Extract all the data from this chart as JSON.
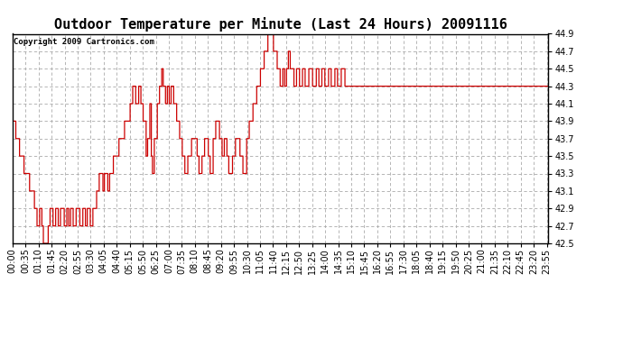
{
  "title": "Outdoor Temperature per Minute (Last 24 Hours) 20091116",
  "copyright_text": "Copyright 2009 Cartronics.com",
  "line_color": "#cc0000",
  "bg_color": "#ffffff",
  "grid_color": "#aaaaaa",
  "ylim": [
    42.5,
    44.9
  ],
  "yticks": [
    42.5,
    42.7,
    42.9,
    43.1,
    43.3,
    43.5,
    43.7,
    43.9,
    44.1,
    44.3,
    44.5,
    44.7,
    44.9
  ],
  "title_fontsize": 11,
  "tick_fontsize": 7,
  "copyright_fontsize": 6.5,
  "xlabel_rotation": 90,
  "x_tick_interval": 35,
  "total_minutes": 1440,
  "x_tick_labels": [
    "00:00",
    "00:35",
    "01:10",
    "01:45",
    "02:20",
    "02:55",
    "03:30",
    "04:05",
    "04:40",
    "05:15",
    "05:50",
    "06:25",
    "07:00",
    "07:35",
    "08:10",
    "08:45",
    "09:20",
    "09:55",
    "10:30",
    "11:05",
    "11:40",
    "12:15",
    "12:50",
    "13:25",
    "14:00",
    "14:35",
    "15:10",
    "15:45",
    "16:20",
    "16:55",
    "17:30",
    "18:05",
    "18:40",
    "19:15",
    "19:50",
    "20:25",
    "21:00",
    "21:35",
    "22:10",
    "22:45",
    "23:20",
    "23:55"
  ],
  "waypoints": [
    [
      0,
      43.9
    ],
    [
      8,
      43.9
    ],
    [
      9,
      43.7
    ],
    [
      18,
      43.7
    ],
    [
      19,
      43.5
    ],
    [
      30,
      43.5
    ],
    [
      31,
      43.3
    ],
    [
      45,
      43.3
    ],
    [
      46,
      43.1
    ],
    [
      58,
      43.1
    ],
    [
      59,
      42.9
    ],
    [
      65,
      42.9
    ],
    [
      66,
      42.7
    ],
    [
      72,
      42.7
    ],
    [
      73,
      42.9
    ],
    [
      78,
      42.9
    ],
    [
      79,
      42.7
    ],
    [
      82,
      42.7
    ],
    [
      83,
      42.5
    ],
    [
      95,
      42.5
    ],
    [
      96,
      42.7
    ],
    [
      100,
      42.7
    ],
    [
      101,
      42.9
    ],
    [
      108,
      42.9
    ],
    [
      109,
      42.7
    ],
    [
      115,
      42.7
    ],
    [
      116,
      42.9
    ],
    [
      122,
      42.9
    ],
    [
      123,
      42.7
    ],
    [
      128,
      42.7
    ],
    [
      129,
      42.9
    ],
    [
      138,
      42.9
    ],
    [
      139,
      42.7
    ],
    [
      145,
      42.7
    ],
    [
      146,
      42.9
    ],
    [
      150,
      42.9
    ],
    [
      151,
      42.7
    ],
    [
      155,
      42.7
    ],
    [
      156,
      42.9
    ],
    [
      162,
      42.9
    ],
    [
      163,
      42.7
    ],
    [
      170,
      42.7
    ],
    [
      171,
      42.9
    ],
    [
      180,
      42.9
    ],
    [
      181,
      42.7
    ],
    [
      188,
      42.7
    ],
    [
      189,
      42.9
    ],
    [
      195,
      42.9
    ],
    [
      196,
      42.7
    ],
    [
      200,
      42.7
    ],
    [
      201,
      42.9
    ],
    [
      208,
      42.9
    ],
    [
      209,
      42.7
    ],
    [
      215,
      42.7
    ],
    [
      216,
      42.9
    ],
    [
      225,
      42.9
    ],
    [
      226,
      43.1
    ],
    [
      232,
      43.1
    ],
    [
      233,
      43.3
    ],
    [
      242,
      43.3
    ],
    [
      243,
      43.1
    ],
    [
      246,
      43.1
    ],
    [
      247,
      43.3
    ],
    [
      255,
      43.3
    ],
    [
      256,
      43.1
    ],
    [
      260,
      43.1
    ],
    [
      261,
      43.3
    ],
    [
      270,
      43.3
    ],
    [
      271,
      43.5
    ],
    [
      285,
      43.5
    ],
    [
      286,
      43.7
    ],
    [
      300,
      43.7
    ],
    [
      301,
      43.9
    ],
    [
      315,
      43.9
    ],
    [
      316,
      44.1
    ],
    [
      322,
      44.1
    ],
    [
      323,
      44.3
    ],
    [
      330,
      44.3
    ],
    [
      331,
      44.1
    ],
    [
      338,
      44.1
    ],
    [
      339,
      44.3
    ],
    [
      344,
      44.3
    ],
    [
      345,
      44.1
    ],
    [
      350,
      44.1
    ],
    [
      351,
      43.9
    ],
    [
      358,
      43.9
    ],
    [
      359,
      43.5
    ],
    [
      362,
      43.5
    ],
    [
      363,
      43.7
    ],
    [
      368,
      43.7
    ],
    [
      369,
      44.1
    ],
    [
      372,
      44.1
    ],
    [
      373,
      43.5
    ],
    [
      375,
      43.5
    ],
    [
      376,
      43.3
    ],
    [
      380,
      43.3
    ],
    [
      381,
      43.7
    ],
    [
      388,
      43.7
    ],
    [
      389,
      44.1
    ],
    [
      394,
      44.1
    ],
    [
      395,
      44.3
    ],
    [
      400,
      44.3
    ],
    [
      401,
      44.5
    ],
    [
      404,
      44.5
    ],
    [
      405,
      44.3
    ],
    [
      410,
      44.3
    ],
    [
      411,
      44.1
    ],
    [
      415,
      44.1
    ],
    [
      416,
      44.3
    ],
    [
      420,
      44.3
    ],
    [
      421,
      44.1
    ],
    [
      425,
      44.1
    ],
    [
      426,
      44.3
    ],
    [
      432,
      44.3
    ],
    [
      433,
      44.1
    ],
    [
      440,
      44.1
    ],
    [
      441,
      43.9
    ],
    [
      448,
      43.9
    ],
    [
      449,
      43.7
    ],
    [
      455,
      43.7
    ],
    [
      456,
      43.5
    ],
    [
      462,
      43.5
    ],
    [
      463,
      43.3
    ],
    [
      470,
      43.3
    ],
    [
      471,
      43.5
    ],
    [
      480,
      43.5
    ],
    [
      481,
      43.7
    ],
    [
      495,
      43.7
    ],
    [
      496,
      43.5
    ],
    [
      500,
      43.5
    ],
    [
      501,
      43.3
    ],
    [
      508,
      43.3
    ],
    [
      509,
      43.5
    ],
    [
      515,
      43.5
    ],
    [
      516,
      43.7
    ],
    [
      525,
      43.7
    ],
    [
      526,
      43.5
    ],
    [
      530,
      43.5
    ],
    [
      531,
      43.3
    ],
    [
      538,
      43.3
    ],
    [
      539,
      43.7
    ],
    [
      545,
      43.7
    ],
    [
      546,
      43.9
    ],
    [
      555,
      43.9
    ],
    [
      556,
      43.7
    ],
    [
      562,
      43.7
    ],
    [
      563,
      43.5
    ],
    [
      568,
      43.5
    ],
    [
      569,
      43.7
    ],
    [
      575,
      43.7
    ],
    [
      576,
      43.5
    ],
    [
      580,
      43.5
    ],
    [
      581,
      43.3
    ],
    [
      590,
      43.3
    ],
    [
      591,
      43.5
    ],
    [
      598,
      43.5
    ],
    [
      599,
      43.7
    ],
    [
      610,
      43.7
    ],
    [
      611,
      43.5
    ],
    [
      618,
      43.5
    ],
    [
      619,
      43.3
    ],
    [
      628,
      43.3
    ],
    [
      629,
      43.7
    ],
    [
      635,
      43.7
    ],
    [
      636,
      43.9
    ],
    [
      645,
      43.9
    ],
    [
      646,
      44.1
    ],
    [
      655,
      44.1
    ],
    [
      656,
      44.3
    ],
    [
      665,
      44.3
    ],
    [
      666,
      44.5
    ],
    [
      675,
      44.5
    ],
    [
      676,
      44.7
    ],
    [
      685,
      44.7
    ],
    [
      686,
      44.9
    ],
    [
      700,
      44.9
    ],
    [
      701,
      44.7
    ],
    [
      710,
      44.7
    ],
    [
      711,
      44.5
    ],
    [
      718,
      44.5
    ],
    [
      719,
      44.3
    ],
    [
      725,
      44.3
    ],
    [
      726,
      44.5
    ],
    [
      730,
      44.5
    ],
    [
      731,
      44.3
    ],
    [
      735,
      44.3
    ],
    [
      736,
      44.5
    ],
    [
      740,
      44.5
    ],
    [
      741,
      44.7
    ],
    [
      745,
      44.7
    ],
    [
      746,
      44.5
    ],
    [
      755,
      44.5
    ],
    [
      756,
      44.3
    ],
    [
      762,
      44.3
    ],
    [
      763,
      44.5
    ],
    [
      770,
      44.5
    ],
    [
      771,
      44.3
    ],
    [
      778,
      44.3
    ],
    [
      779,
      44.5
    ],
    [
      785,
      44.5
    ],
    [
      786,
      44.3
    ],
    [
      795,
      44.3
    ],
    [
      796,
      44.5
    ],
    [
      805,
      44.5
    ],
    [
      806,
      44.3
    ],
    [
      815,
      44.3
    ],
    [
      816,
      44.5
    ],
    [
      822,
      44.5
    ],
    [
      823,
      44.3
    ],
    [
      830,
      44.3
    ],
    [
      831,
      44.5
    ],
    [
      838,
      44.5
    ],
    [
      839,
      44.3
    ],
    [
      848,
      44.3
    ],
    [
      849,
      44.5
    ],
    [
      855,
      44.5
    ],
    [
      856,
      44.3
    ],
    [
      865,
      44.3
    ],
    [
      866,
      44.5
    ],
    [
      872,
      44.5
    ],
    [
      873,
      44.3
    ],
    [
      882,
      44.3
    ],
    [
      883,
      44.5
    ],
    [
      892,
      44.5
    ],
    [
      893,
      44.3
    ],
    [
      1439,
      44.3
    ]
  ]
}
